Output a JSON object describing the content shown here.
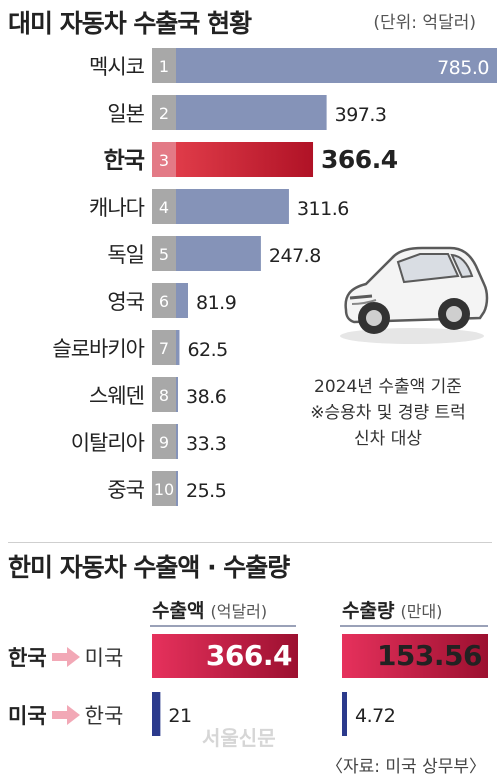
{
  "header": {
    "title": "대미 자동차 수출국 현황",
    "unit": "(단위: 억달러)"
  },
  "chart_data": [
    {
      "type": "bar",
      "orientation": "horizontal",
      "title": "대미 자동차 수출국 현황",
      "unit": "(단위: 억달러)",
      "categories": [
        "멕시코",
        "일본",
        "한국",
        "캐나다",
        "독일",
        "영국",
        "슬로바키아",
        "스웨덴",
        "이탈리아",
        "중국"
      ],
      "ranks": [
        "1",
        "2",
        "3",
        "4",
        "5",
        "6",
        "7",
        "8",
        "9",
        "10"
      ],
      "values": [
        785.0,
        397.3,
        366.4,
        311.6,
        247.8,
        81.9,
        62.5,
        38.6,
        33.3,
        25.5
      ],
      "value_labels": [
        "785.0",
        "397.3",
        "366.4",
        "311.6",
        "247.8",
        "81.9",
        "62.5",
        "38.6",
        "33.3",
        "25.5"
      ],
      "highlight": "한국",
      "colors": {
        "bar": "#8593b8",
        "highlight": "#d62b3f",
        "rank_box": "#a8a8a8",
        "highlight_rank_box": "#e37a86"
      }
    },
    {
      "type": "bar",
      "orientation": "horizontal",
      "title": "한미 자동차 수출액 · 수출량",
      "panels": [
        {
          "name": "수출액",
          "unit": "(억달러)",
          "categories": [
            "한국 → 미국",
            "미국 → 한국"
          ],
          "values": [
            366.4,
            21
          ],
          "value_labels": [
            "366.4",
            "21"
          ]
        },
        {
          "name": "수출량",
          "unit": "(만대)",
          "categories": [
            "한국 → 미국",
            "미국 → 한국"
          ],
          "values": [
            153.56,
            4.72
          ],
          "value_labels": [
            "153.56",
            "4.72"
          ]
        }
      ],
      "colors": {
        "korea": "#d42d52",
        "usa": "#2b3a8c",
        "arrow": "#f2a8b6"
      }
    }
  ],
  "note": {
    "line1": "2024년 수출액 기준",
    "line2": "※승용차 및 경량 트럭",
    "line3": "신차 대상"
  },
  "section2": {
    "title": "한미 자동차 수출액 · 수출량",
    "amount_head": "수출액",
    "amount_unit": "(억달러)",
    "volume_head": "수출량",
    "volume_unit": "(만대)",
    "row1_from": "한국",
    "row1_to": "미국",
    "row2_from": "미국",
    "row2_to": "한국"
  },
  "watermark": "서울신문",
  "source": "〈자료: 미국 상무부〉"
}
